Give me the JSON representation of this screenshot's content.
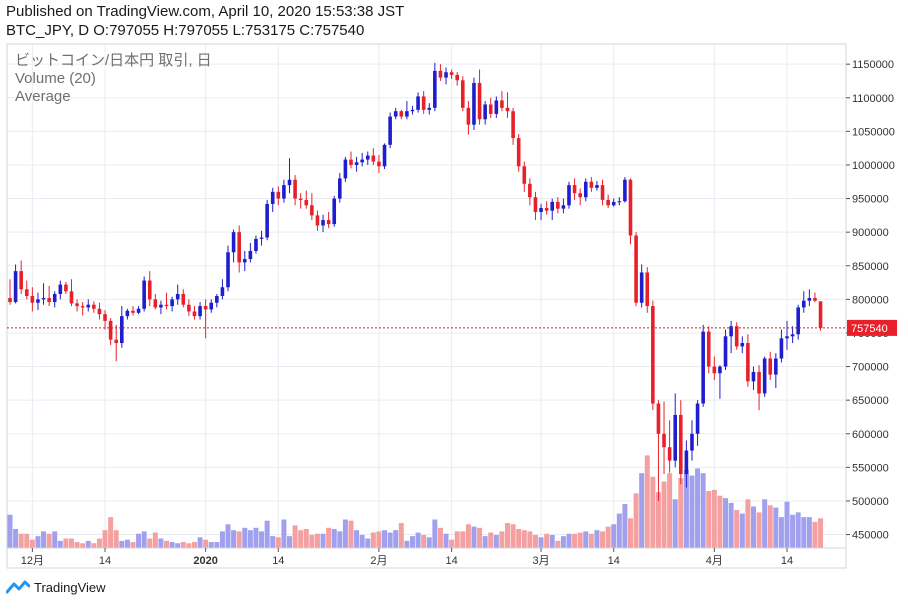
{
  "header": {
    "published": "Published on TradingView.com, April 10, 2020 15:53:38 JST",
    "ohlc": "BTC_JPY, D O:797055 H:797055 L:753175 C:757540"
  },
  "legend": {
    "symbol": "ビットコイン/日本円 取引, 日",
    "volume": "Volume (20)",
    "average": "Average"
  },
  "footer": {
    "brand": "TradingView"
  },
  "colors": {
    "up": "#1e1ecc",
    "down": "#e8202a",
    "up_volume": "#a0a0ee",
    "down_volume": "#f4a0a0",
    "price_line": "#c0201e",
    "grid": "#e8ecf2"
  },
  "chart_data": {
    "type": "candlestick",
    "symbol": "BTC_JPY",
    "interval": "D",
    "last_price": 757540,
    "last_price_label": "757540",
    "y_ticks": [
      450000,
      500000,
      550000,
      600000,
      650000,
      700000,
      750000,
      800000,
      850000,
      900000,
      950000,
      1000000,
      1050000,
      1100000,
      1150000
    ],
    "y_tick_labels": [
      "450000",
      "500000",
      "550000",
      "600000",
      "650000",
      "700000",
      "750000",
      "800000",
      "850000",
      "900000",
      "950000",
      "1000000",
      "1050000",
      "1100000",
      "1150000"
    ],
    "ylim": [
      430000,
      1180000
    ],
    "x_ticks": [
      {
        "label": "12月",
        "index": 4
      },
      {
        "label": "14",
        "index": 17
      },
      {
        "label": "2020",
        "index": 35
      },
      {
        "label": "14",
        "index": 48
      },
      {
        "label": "2月",
        "index": 66
      },
      {
        "label": "14",
        "index": 79
      },
      {
        "label": "3月",
        "index": 95
      },
      {
        "label": "14",
        "index": 108
      },
      {
        "label": "4月",
        "index": 126
      },
      {
        "label": "14",
        "index": 139
      }
    ],
    "ohlc": [
      [
        802000,
        830000,
        792000,
        796000
      ],
      [
        796000,
        852000,
        794000,
        842000
      ],
      [
        842000,
        858000,
        808000,
        815000
      ],
      [
        815000,
        828000,
        800000,
        805000
      ],
      [
        805000,
        818000,
        782000,
        795000
      ],
      [
        795000,
        810000,
        784000,
        800000
      ],
      [
        800000,
        824000,
        792000,
        802000
      ],
      [
        802000,
        820000,
        790000,
        796000
      ],
      [
        796000,
        812000,
        788000,
        808000
      ],
      [
        808000,
        828000,
        800000,
        822000
      ],
      [
        822000,
        826000,
        808000,
        812000
      ],
      [
        812000,
        830000,
        790000,
        794000
      ],
      [
        794000,
        800000,
        782000,
        790000
      ],
      [
        790000,
        796000,
        776000,
        788000
      ],
      [
        788000,
        800000,
        782000,
        792000
      ],
      [
        792000,
        797000,
        780000,
        786000
      ],
      [
        786000,
        795000,
        770000,
        778000
      ],
      [
        778000,
        784000,
        755000,
        768000
      ],
      [
        768000,
        772000,
        732000,
        740000
      ],
      [
        740000,
        762000,
        708000,
        735000
      ],
      [
        735000,
        790000,
        728000,
        775000
      ],
      [
        775000,
        786000,
        770000,
        783000
      ],
      [
        783000,
        790000,
        776000,
        780000
      ],
      [
        780000,
        790000,
        778000,
        786000
      ],
      [
        786000,
        834000,
        782000,
        828000
      ],
      [
        828000,
        842000,
        790000,
        800000
      ],
      [
        800000,
        808000,
        785000,
        788000
      ],
      [
        788000,
        798000,
        778000,
        792000
      ],
      [
        792000,
        810000,
        785000,
        790000
      ],
      [
        790000,
        804000,
        782000,
        800000
      ],
      [
        800000,
        822000,
        792000,
        808000
      ],
      [
        808000,
        815000,
        788000,
        792000
      ],
      [
        792000,
        800000,
        775000,
        782000
      ],
      [
        782000,
        790000,
        770000,
        775000
      ],
      [
        775000,
        796000,
        770000,
        790000
      ],
      [
        790000,
        800000,
        742000,
        785000
      ],
      [
        785000,
        800000,
        780000,
        795000
      ],
      [
        795000,
        808000,
        788000,
        805000
      ],
      [
        805000,
        830000,
        800000,
        818000
      ],
      [
        818000,
        880000,
        812000,
        870000
      ],
      [
        870000,
        904000,
        855000,
        900000
      ],
      [
        900000,
        910000,
        840000,
        855000
      ],
      [
        855000,
        872000,
        842000,
        860000
      ],
      [
        860000,
        884000,
        855000,
        872000
      ],
      [
        872000,
        895000,
        868000,
        890000
      ],
      [
        890000,
        902000,
        880000,
        892000
      ],
      [
        892000,
        948000,
        888000,
        942000
      ],
      [
        942000,
        966000,
        930000,
        960000
      ],
      [
        960000,
        968000,
        940000,
        950000
      ],
      [
        950000,
        978000,
        944000,
        970000
      ],
      [
        970000,
        1010000,
        958000,
        978000
      ],
      [
        978000,
        985000,
        940000,
        950000
      ],
      [
        950000,
        958000,
        935000,
        948000
      ],
      [
        948000,
        962000,
        935000,
        940000
      ],
      [
        940000,
        958000,
        918000,
        925000
      ],
      [
        925000,
        932000,
        902000,
        910000
      ],
      [
        910000,
        926000,
        900000,
        918000
      ],
      [
        918000,
        930000,
        906000,
        912000
      ],
      [
        912000,
        954000,
        908000,
        950000
      ],
      [
        950000,
        988000,
        944000,
        980000
      ],
      [
        980000,
        1012000,
        975000,
        1008000
      ],
      [
        1008000,
        1020000,
        995000,
        1000000
      ],
      [
        1000000,
        1012000,
        990000,
        1004000
      ],
      [
        1004000,
        1018000,
        998000,
        1008000
      ],
      [
        1008000,
        1020000,
        1000000,
        1014000
      ],
      [
        1014000,
        1025000,
        1000000,
        1005000
      ],
      [
        1005000,
        1015000,
        988000,
        998000
      ],
      [
        998000,
        1032000,
        994000,
        1030000
      ],
      [
        1030000,
        1078000,
        1025000,
        1072000
      ],
      [
        1072000,
        1085000,
        1068000,
        1080000
      ],
      [
        1080000,
        1082000,
        1068000,
        1072000
      ],
      [
        1072000,
        1095000,
        1068000,
        1080000
      ],
      [
        1080000,
        1088000,
        1075000,
        1082000
      ],
      [
        1082000,
        1108000,
        1078000,
        1102000
      ],
      [
        1102000,
        1110000,
        1076000,
        1082000
      ],
      [
        1082000,
        1092000,
        1075000,
        1085000
      ],
      [
        1085000,
        1152000,
        1080000,
        1140000
      ],
      [
        1140000,
        1150000,
        1125000,
        1130000
      ],
      [
        1130000,
        1145000,
        1120000,
        1138000
      ],
      [
        1138000,
        1142000,
        1128000,
        1134000
      ],
      [
        1134000,
        1138000,
        1118000,
        1126000
      ],
      [
        1126000,
        1132000,
        1080000,
        1085000
      ],
      [
        1085000,
        1095000,
        1045000,
        1060000
      ],
      [
        1060000,
        1130000,
        1052000,
        1122000
      ],
      [
        1122000,
        1142000,
        1060000,
        1068000
      ],
      [
        1068000,
        1095000,
        1060000,
        1090000
      ],
      [
        1090000,
        1100000,
        1070000,
        1076000
      ],
      [
        1076000,
        1102000,
        1070000,
        1096000
      ],
      [
        1096000,
        1110000,
        1080000,
        1085000
      ],
      [
        1085000,
        1108000,
        1070000,
        1080000
      ],
      [
        1080000,
        1085000,
        1030000,
        1040000
      ],
      [
        1040000,
        1046000,
        990000,
        998000
      ],
      [
        998000,
        1005000,
        960000,
        972000
      ],
      [
        972000,
        980000,
        940000,
        952000
      ],
      [
        952000,
        960000,
        918000,
        930000
      ],
      [
        930000,
        942000,
        918000,
        936000
      ],
      [
        936000,
        946000,
        926000,
        932000
      ],
      [
        932000,
        950000,
        918000,
        945000
      ],
      [
        945000,
        952000,
        928000,
        935000
      ],
      [
        935000,
        950000,
        928000,
        940000
      ],
      [
        940000,
        975000,
        935000,
        970000
      ],
      [
        970000,
        980000,
        948000,
        958000
      ],
      [
        958000,
        965000,
        940000,
        952000
      ],
      [
        952000,
        980000,
        946000,
        975000
      ],
      [
        975000,
        982000,
        960000,
        966000
      ],
      [
        966000,
        976000,
        962000,
        970000
      ],
      [
        970000,
        978000,
        940000,
        948000
      ],
      [
        948000,
        956000,
        936000,
        940000
      ],
      [
        940000,
        950000,
        938000,
        945000
      ],
      [
        945000,
        952000,
        940000,
        946000
      ],
      [
        946000,
        982000,
        944000,
        978000
      ],
      [
        978000,
        980000,
        882000,
        895000
      ],
      [
        895000,
        900000,
        790000,
        795000
      ],
      [
        795000,
        852000,
        788000,
        840000
      ],
      [
        840000,
        848000,
        780000,
        790000
      ],
      [
        790000,
        798000,
        635000,
        645000
      ],
      [
        645000,
        650000,
        500000,
        600000
      ],
      [
        600000,
        648000,
        540000,
        580000
      ],
      [
        580000,
        620000,
        542000,
        560000
      ],
      [
        560000,
        660000,
        550000,
        628000
      ],
      [
        628000,
        650000,
        525000,
        540000
      ],
      [
        540000,
        590000,
        520000,
        575000
      ],
      [
        575000,
        620000,
        560000,
        600000
      ],
      [
        600000,
        650000,
        582000,
        645000
      ],
      [
        645000,
        762000,
        640000,
        752000
      ],
      [
        752000,
        760000,
        690000,
        700000
      ],
      [
        700000,
        715000,
        680000,
        690000
      ],
      [
        690000,
        702000,
        652000,
        700000
      ],
      [
        700000,
        755000,
        695000,
        745000
      ],
      [
        745000,
        768000,
        720000,
        760000
      ],
      [
        760000,
        766000,
        725000,
        730000
      ],
      [
        730000,
        745000,
        720000,
        735000
      ],
      [
        735000,
        748000,
        670000,
        678000
      ],
      [
        678000,
        700000,
        665000,
        692000
      ],
      [
        692000,
        702000,
        635000,
        660000
      ],
      [
        660000,
        715000,
        655000,
        712000
      ],
      [
        712000,
        722000,
        680000,
        688000
      ],
      [
        688000,
        720000,
        668000,
        712000
      ],
      [
        712000,
        755000,
        706000,
        742000
      ],
      [
        742000,
        768000,
        725000,
        745000
      ],
      [
        745000,
        760000,
        735000,
        748000
      ],
      [
        748000,
        792000,
        740000,
        788000
      ],
      [
        788000,
        812000,
        780000,
        798000
      ],
      [
        798000,
        815000,
        790000,
        802000
      ],
      [
        802000,
        810000,
        796000,
        798000
      ],
      [
        797055,
        797055,
        753175,
        757540
      ]
    ],
    "volume": [
      28,
      16,
      12,
      12,
      7,
      10,
      14,
      12,
      14,
      6,
      8,
      8,
      5,
      4,
      6,
      4,
      8,
      15,
      26,
      15,
      6,
      7,
      5,
      12,
      14,
      8,
      13,
      8,
      6,
      5,
      4,
      5,
      4,
      5,
      9,
      7,
      5,
      5,
      14,
      20,
      15,
      14,
      17,
      15,
      17,
      14,
      23,
      10,
      9,
      24,
      10,
      19,
      15,
      16,
      11,
      12,
      12,
      17,
      16,
      14,
      24,
      23,
      15,
      11,
      8,
      13,
      14,
      15,
      13,
      15,
      21,
      6,
      10,
      13,
      11,
      9,
      24,
      17,
      12,
      7,
      14,
      14,
      20,
      18,
      17,
      10,
      13,
      11,
      14,
      21,
      20,
      16,
      15,
      14,
      11,
      9,
      12,
      11,
      6,
      10,
      12,
      12,
      13,
      14,
      12,
      15,
      14,
      18,
      20,
      29,
      37,
      25,
      46,
      63,
      78,
      60,
      47,
      56,
      63,
      41,
      59,
      66,
      61,
      67,
      63,
      48,
      49,
      44,
      42,
      38,
      32,
      29,
      41,
      35,
      30,
      41,
      36,
      34,
      26,
      39,
      28,
      30,
      26,
      26,
      22,
      25
    ],
    "volume_up": [
      true,
      true,
      false,
      false,
      false,
      true,
      true,
      false,
      true,
      true,
      false,
      false,
      false,
      false,
      true,
      false,
      false,
      false,
      false,
      false,
      true,
      true,
      false,
      true,
      true,
      false,
      false,
      true,
      false,
      true,
      true,
      false,
      false,
      false,
      true,
      false,
      true,
      true,
      true,
      true,
      true,
      false,
      true,
      true,
      true,
      true,
      true,
      true,
      false,
      true,
      true,
      false,
      false,
      false,
      false,
      false,
      true,
      false,
      true,
      true,
      true,
      false,
      true,
      true,
      true,
      false,
      false,
      true,
      true,
      true,
      false,
      true,
      true,
      true,
      false,
      true,
      true,
      false,
      true,
      false,
      false,
      false,
      false,
      true,
      false,
      true,
      false,
      true,
      false,
      false,
      false,
      false,
      false,
      false,
      false,
      true,
      false,
      true,
      false,
      true,
      true,
      false,
      false,
      true,
      false,
      true,
      false,
      false,
      true,
      true,
      true,
      false,
      false,
      true,
      false,
      false,
      false,
      false,
      false,
      true,
      false,
      true,
      true,
      true,
      true,
      false,
      false,
      false,
      true,
      true,
      false,
      true,
      false,
      true,
      false,
      true,
      false,
      true,
      true,
      true,
      true,
      true,
      true,
      true,
      false,
      false
    ]
  }
}
